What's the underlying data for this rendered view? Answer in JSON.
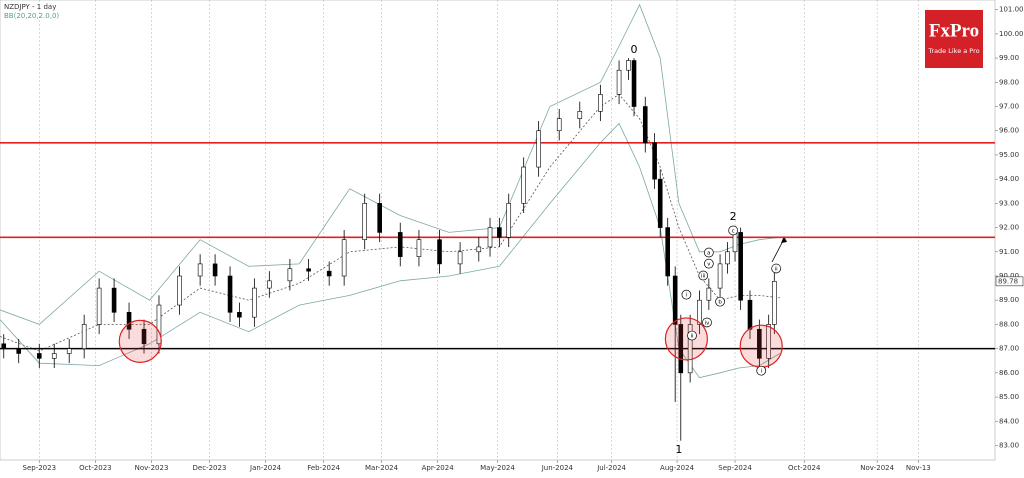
{
  "chart_data": {
    "type": "candlestick",
    "title": "NZDJPY - 1 day",
    "subtitle": "BB(20,20,2.0,0)",
    "logo": {
      "name": "FxPro",
      "tagline": "Trade Like a Pro"
    },
    "last_price": 89.78,
    "ylim": [
      82.4,
      101.4
    ],
    "xlim": [
      -4,
      528
    ],
    "grid": "vertical",
    "yticks": [
      {
        "value": 83,
        "label": "83.00"
      },
      {
        "value": 84,
        "label": "84.00"
      },
      {
        "value": 85,
        "label": "85.00"
      },
      {
        "value": 86,
        "label": "86.00"
      },
      {
        "value": 87,
        "label": "87.00"
      },
      {
        "value": 88,
        "label": "88.00"
      },
      {
        "value": 89,
        "label": "89.00"
      },
      {
        "value": 90,
        "label": "90.00"
      },
      {
        "value": 91,
        "label": "91.00"
      },
      {
        "value": 92,
        "label": "92.00"
      },
      {
        "value": 93,
        "label": "93.00"
      },
      {
        "value": 94,
        "label": "94.00"
      },
      {
        "value": 95,
        "label": "95.00"
      },
      {
        "value": 96,
        "label": "96.00"
      },
      {
        "value": 97,
        "label": "97.00"
      },
      {
        "value": 98,
        "label": "98.00"
      },
      {
        "value": 99,
        "label": "99.00"
      },
      {
        "value": 100,
        "label": "100.00"
      },
      {
        "value": 101,
        "label": "101.00"
      }
    ],
    "xticks": [
      {
        "value": 17,
        "label": "Sep-2023"
      },
      {
        "value": 47,
        "label": "Oct-2023"
      },
      {
        "value": 77,
        "label": "Nov-2023"
      },
      {
        "value": 108,
        "label": "Dec-2023"
      },
      {
        "value": 138,
        "label": "Jan-2024"
      },
      {
        "value": 169,
        "label": "Feb-2024"
      },
      {
        "value": 200,
        "label": "Mar-2024"
      },
      {
        "value": 230,
        "label": "Apr-2024"
      },
      {
        "value": 262,
        "label": "May-2024"
      },
      {
        "value": 294,
        "label": "Jun-2024"
      },
      {
        "value": 323,
        "label": "Jul-2024"
      },
      {
        "value": 358,
        "label": "Aug-2024"
      },
      {
        "value": 389,
        "label": "Sep-2024"
      },
      {
        "value": 426,
        "label": "Oct-2024"
      },
      {
        "value": 465,
        "label": "Nov-2024"
      },
      {
        "value": 487,
        "label": "Nov-13"
      }
    ],
    "x": [
      -2,
      6,
      17,
      25,
      33,
      41,
      49,
      57,
      65,
      73,
      81,
      92,
      103,
      111,
      119,
      124,
      132,
      140,
      151,
      161,
      172,
      180,
      191,
      199,
      210,
      220,
      231,
      242,
      252,
      258,
      263,
      268,
      276,
      284,
      295,
      306,
      317,
      327,
      332,
      335,
      341,
      346,
      349,
      353,
      357,
      360,
      365,
      370,
      375,
      381,
      385,
      389,
      392,
      397,
      402,
      407,
      410
    ],
    "open": [
      87.2,
      87.0,
      86.8,
      86.6,
      86.8,
      87.0,
      88.0,
      89.5,
      88.5,
      87.8,
      87.2,
      88.8,
      90.0,
      90.5,
      90.0,
      88.5,
      88.3,
      89.5,
      89.8,
      90.3,
      90.2,
      90.0,
      91.5,
      93.0,
      91.8,
      90.8,
      91.5,
      90.5,
      91.0,
      91.2,
      92.0,
      91.6,
      93.0,
      94.5,
      96.0,
      96.5,
      96.8,
      97.5,
      98.5,
      98.9,
      97.0,
      95.5,
      94.0,
      92.0,
      90.0,
      88.0,
      86.0,
      88.0,
      89.0,
      89.5,
      90.5,
      91.0,
      91.8,
      89.0,
      87.8,
      86.6,
      88.0
    ],
    "close": [
      87.0,
      86.8,
      86.6,
      86.8,
      87.0,
      88.0,
      89.5,
      88.5,
      87.8,
      87.2,
      88.8,
      90.0,
      90.5,
      90.0,
      88.5,
      88.3,
      89.5,
      89.8,
      90.3,
      90.2,
      90.0,
      91.5,
      93.0,
      91.8,
      90.8,
      91.5,
      90.5,
      91.0,
      91.2,
      92.0,
      91.6,
      93.0,
      94.5,
      96.0,
      96.5,
      96.8,
      97.5,
      98.5,
      98.9,
      97.0,
      95.5,
      94.0,
      92.0,
      90.0,
      88.0,
      86.0,
      88.0,
      89.0,
      89.5,
      90.5,
      91.0,
      91.8,
      89.0,
      87.8,
      86.6,
      88.0,
      89.78
    ],
    "high": [
      87.6,
      87.4,
      87.2,
      87.2,
      87.4,
      88.4,
      89.9,
      89.9,
      88.9,
      88.2,
      89.2,
      90.4,
      90.9,
      90.9,
      90.4,
      88.9,
      89.9,
      90.2,
      90.7,
      90.7,
      90.6,
      91.9,
      93.4,
      93.4,
      92.2,
      91.9,
      91.9,
      91.4,
      91.6,
      92.4,
      92.4,
      93.4,
      94.9,
      96.4,
      96.9,
      97.2,
      97.9,
      98.9,
      99.0,
      99.0,
      97.4,
      95.9,
      94.4,
      92.4,
      90.4,
      88.4,
      88.4,
      89.4,
      89.9,
      90.9,
      91.4,
      92.0,
      92.0,
      89.4,
      88.2,
      88.4,
      90.2
    ],
    "low": [
      86.6,
      86.4,
      86.2,
      86.2,
      86.4,
      86.6,
      87.6,
      88.1,
      87.4,
      86.8,
      86.8,
      88.4,
      89.6,
      89.6,
      88.1,
      87.9,
      87.9,
      89.1,
      89.4,
      89.8,
      89.6,
      89.6,
      91.1,
      91.4,
      90.4,
      90.4,
      90.1,
      90.1,
      90.6,
      90.8,
      91.2,
      91.2,
      92.6,
      94.1,
      95.6,
      96.1,
      96.4,
      97.1,
      98.1,
      96.6,
      95.1,
      93.6,
      91.6,
      89.6,
      84.8,
      83.2,
      85.6,
      87.6,
      88.6,
      89.1,
      90.1,
      90.6,
      88.6,
      87.4,
      86.2,
      86.2,
      87.6
    ],
    "bands": {
      "x": [
        -4,
        17,
        49,
        76,
        103,
        129,
        156,
        183,
        210,
        236,
        263,
        290,
        317,
        327,
        338,
        349,
        359,
        370,
        381,
        391,
        402,
        413
      ],
      "series": [
        {
          "name": "upper",
          "color": "#7aa9a6",
          "values": [
            88.6,
            88.0,
            90.2,
            89.0,
            91.5,
            90.4,
            90.5,
            93.6,
            92.5,
            91.8,
            92.0,
            97.0,
            98.0,
            99.5,
            101.2,
            99.0,
            93.0,
            91.0,
            91.0,
            91.3,
            91.5,
            91.6
          ]
        },
        {
          "name": "middle",
          "color": "#555555",
          "values": [
            87.5,
            86.9,
            88.0,
            88.0,
            89.5,
            89.0,
            89.7,
            91.0,
            91.2,
            91.0,
            91.2,
            94.5,
            97.0,
            97.5,
            96.5,
            94.5,
            92.0,
            90.0,
            89.0,
            89.2,
            89.2,
            89.1
          ]
        },
        {
          "name": "lower",
          "color": "#7aa9a6",
          "values": [
            88.2,
            86.4,
            86.3,
            87.2,
            88.5,
            87.7,
            88.8,
            89.2,
            89.8,
            90.0,
            90.4,
            93.0,
            95.5,
            96.3,
            94.5,
            92.0,
            87.0,
            85.8,
            86.0,
            86.2,
            86.3,
            86.8
          ]
        }
      ]
    },
    "levels": [
      {
        "value": 95.5,
        "color": "#e02020"
      },
      {
        "value": 91.6,
        "color": "#e02020"
      },
      {
        "value": 87.0,
        "color": "#000000"
      }
    ],
    "circles": [
      {
        "x": 71,
        "y": 87.3
      },
      {
        "x": 363,
        "y": 87.4
      },
      {
        "x": 403,
        "y": 87.1
      }
    ],
    "waves": [
      {
        "label": "0",
        "x": 335,
        "y": 99.35,
        "circled": false
      },
      {
        "label": "1",
        "x": 359,
        "y": 82.83,
        "circled": false
      },
      {
        "label": "2",
        "x": 388,
        "y": 92.45,
        "circled": false
      },
      {
        "label": "i",
        "x": 363,
        "y": 89.23,
        "circled": true
      },
      {
        "label": "ii",
        "x": 366,
        "y": 87.54,
        "circled": true
      },
      {
        "label": "iii",
        "x": 372,
        "y": 90.02,
        "circled": true
      },
      {
        "label": "iv",
        "x": 374,
        "y": 88.08,
        "circled": true
      },
      {
        "label": "v",
        "x": 375,
        "y": 90.51,
        "circled": true
      },
      {
        "label": "a",
        "x": 375,
        "y": 90.97,
        "circled": true
      },
      {
        "label": "b",
        "x": 381,
        "y": 88.94,
        "circled": true
      },
      {
        "label": "c",
        "x": 388,
        "y": 91.88,
        "circled": true
      },
      {
        "label": "i",
        "x": 403,
        "y": 86.09,
        "circled": true
      },
      {
        "label": "ii",
        "x": 411,
        "y": 90.31,
        "circled": true
      }
    ]
  }
}
